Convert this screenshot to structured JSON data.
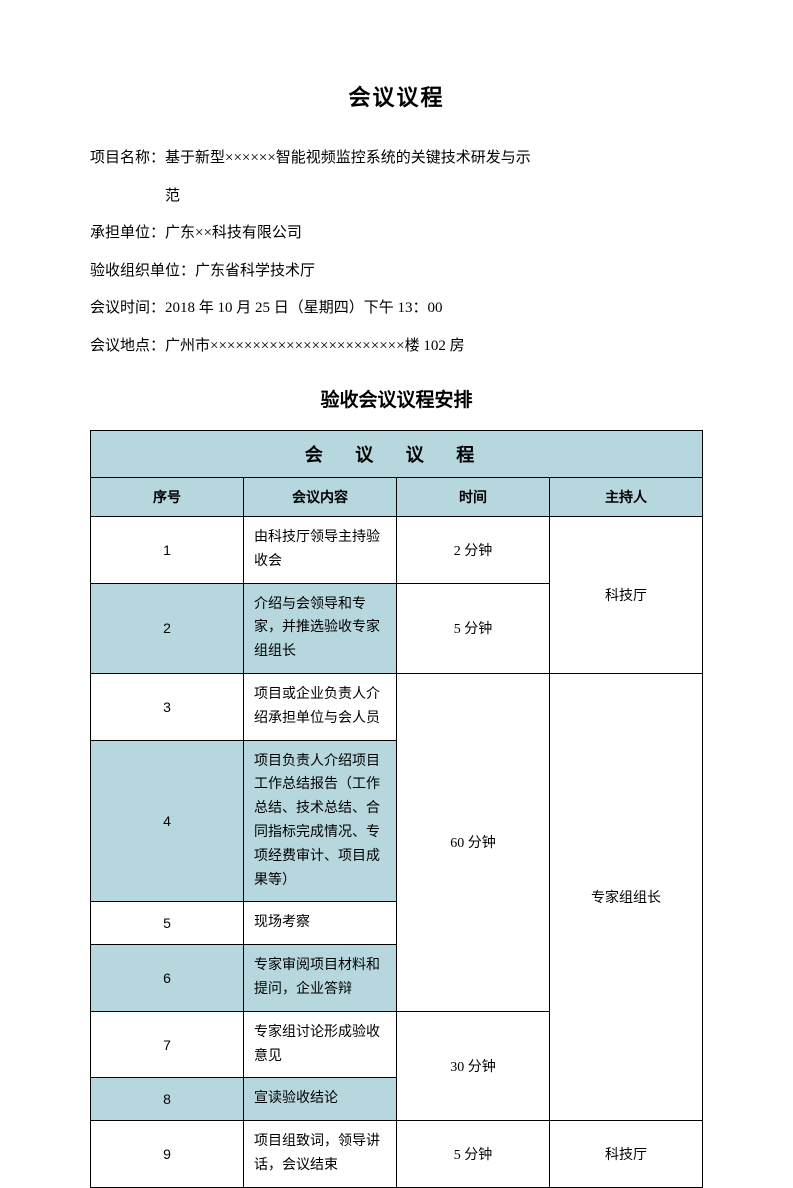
{
  "colors": {
    "header_bg": "#b6d7de",
    "alt_bg": "#b6d7de",
    "border": "#000000",
    "text": "#000000",
    "page_bg": "#ffffff"
  },
  "title": "会议议程",
  "info": {
    "project_label": "项目名称：",
    "project_value_line1": "基于新型××××××智能视频监控系统的关键技术研发与示",
    "project_value_line2": "范",
    "org_label": "承担单位：",
    "org_value": "广东××科技有限公司",
    "accept_org_label": "验收组织单位：",
    "accept_org_value": "广东省科学技术厅",
    "time_label": "会议时间：",
    "time_value": "2018 年 10 月 25 日（星期四）下午 13：00",
    "place_label": "会议地点：",
    "place_value": "广州市×××××××××××××××××××××××楼 102 房"
  },
  "sub_title": "验收会议议程安排",
  "table": {
    "banner": "会 议 议 程",
    "headers": {
      "seq": "序号",
      "content": "会议内容",
      "time": "时间",
      "host": "主持人"
    },
    "rows": [
      {
        "seq": "1",
        "content": "由科技厅领导主持验收会",
        "time": "2 分钟",
        "host": "科技厅",
        "host_rowspan": 2,
        "time_rowspan": 1,
        "alt": false
      },
      {
        "seq": "2",
        "content": "介绍与会领导和专家，并推选验收专家组组长",
        "time": "5 分钟",
        "alt": true
      },
      {
        "seq": "3",
        "content": "项目或企业负责人介绍承担单位与会人员",
        "time": "60 分钟",
        "time_rowspan": 4,
        "host": "专家组组长",
        "host_rowspan": 6,
        "alt": false
      },
      {
        "seq": "4",
        "content": "项目负责人介绍项目工作总结报告（工作总结、技术总结、合同指标完成情况、专项经费审计、项目成果等）",
        "alt": true
      },
      {
        "seq": "5",
        "content": "现场考察",
        "alt": false
      },
      {
        "seq": "6",
        "content": "专家审阅项目材料和提问，企业答辩",
        "alt": true
      },
      {
        "seq": "7",
        "content": "专家组讨论形成验收意见",
        "time": "30 分钟",
        "time_rowspan": 2,
        "alt": false
      },
      {
        "seq": "8",
        "content": "宣读验收结论",
        "alt": true
      },
      {
        "seq": "9",
        "content": "项目组致词，领导讲话，会议结束",
        "time": "5 分钟",
        "host": "科技厅",
        "host_rowspan": 1,
        "alt": false
      }
    ]
  }
}
